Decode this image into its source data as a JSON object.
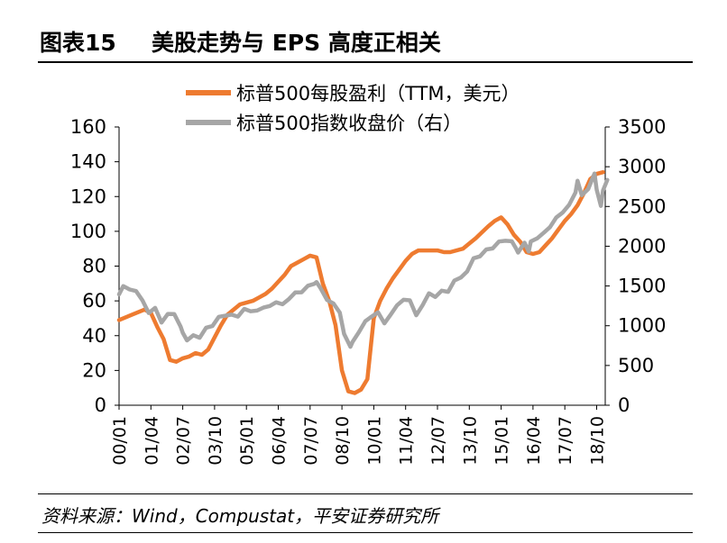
{
  "header": {
    "figure_label": "图表15",
    "title": "美股走势与 EPS 高度正相关"
  },
  "source": "资料来源：Wind，Compustat，平安证券研究所",
  "colors": {
    "eps": "#ee7b30",
    "index": "#a6a6a6",
    "axis": "#000000"
  },
  "chart_data": {
    "type": "line",
    "x_tick_labels": [
      "00/01",
      "01/04",
      "02/07",
      "03/10",
      "05/01",
      "06/04",
      "07/07",
      "08/10",
      "10/01",
      "11/04",
      "12/07",
      "13/10",
      "15/01",
      "16/04",
      "17/07",
      "18/10"
    ],
    "x_range": [
      "2000-01",
      "2019-03"
    ],
    "y_left": {
      "range": [
        0,
        160
      ],
      "ticks": [
        0,
        20,
        40,
        60,
        80,
        100,
        120,
        140,
        160
      ]
    },
    "y_right": {
      "range": [
        0,
        3500
      ],
      "ticks": [
        0,
        500,
        1000,
        1500,
        2000,
        2500,
        3000,
        3500
      ]
    },
    "legend_position": "top-center",
    "series": [
      {
        "name": "标普500每股盈利（TTM，美元）",
        "axis": "left",
        "points": [
          [
            "2000-01",
            49
          ],
          [
            "2000-07",
            52
          ],
          [
            "2001-01",
            55
          ],
          [
            "2001-04",
            53
          ],
          [
            "2001-07",
            45
          ],
          [
            "2001-10",
            38
          ],
          [
            "2002-01",
            26
          ],
          [
            "2002-04",
            25
          ],
          [
            "2002-07",
            27
          ],
          [
            "2002-10",
            28
          ],
          [
            "2003-01",
            30
          ],
          [
            "2003-04",
            29
          ],
          [
            "2003-07",
            32
          ],
          [
            "2003-10",
            39
          ],
          [
            "2004-01",
            46
          ],
          [
            "2004-04",
            52
          ],
          [
            "2004-07",
            55
          ],
          [
            "2004-10",
            58
          ],
          [
            "2005-01",
            59
          ],
          [
            "2005-04",
            60
          ],
          [
            "2005-07",
            62
          ],
          [
            "2005-10",
            64
          ],
          [
            "2006-01",
            67
          ],
          [
            "2006-04",
            71
          ],
          [
            "2006-07",
            75
          ],
          [
            "2006-10",
            80
          ],
          [
            "2007-01",
            82
          ],
          [
            "2007-04",
            84
          ],
          [
            "2007-07",
            86
          ],
          [
            "2007-10",
            85
          ],
          [
            "2008-01",
            70
          ],
          [
            "2008-04",
            60
          ],
          [
            "2008-07",
            46
          ],
          [
            "2008-10",
            20
          ],
          [
            "2009-01",
            8
          ],
          [
            "2009-04",
            7
          ],
          [
            "2009-07",
            9
          ],
          [
            "2009-10",
            15
          ],
          [
            "2010-01",
            50
          ],
          [
            "2010-04",
            60
          ],
          [
            "2010-07",
            67
          ],
          [
            "2010-10",
            73
          ],
          [
            "2011-01",
            78
          ],
          [
            "2011-04",
            83
          ],
          [
            "2011-07",
            87
          ],
          [
            "2011-10",
            89
          ],
          [
            "2012-01",
            89
          ],
          [
            "2012-07",
            89
          ],
          [
            "2012-10",
            88
          ],
          [
            "2013-01",
            88
          ],
          [
            "2013-07",
            90
          ],
          [
            "2013-10",
            93
          ],
          [
            "2014-01",
            96
          ],
          [
            "2014-07",
            103
          ],
          [
            "2014-10",
            106
          ],
          [
            "2015-01",
            108
          ],
          [
            "2015-04",
            104
          ],
          [
            "2015-07",
            98
          ],
          [
            "2015-10",
            94
          ],
          [
            "2016-01",
            88
          ],
          [
            "2016-04",
            87
          ],
          [
            "2016-07",
            88
          ],
          [
            "2016-10",
            92
          ],
          [
            "2017-01",
            96
          ],
          [
            "2017-04",
            101
          ],
          [
            "2017-07",
            106
          ],
          [
            "2017-10",
            110
          ],
          [
            "2018-01",
            115
          ],
          [
            "2018-04",
            122
          ],
          [
            "2018-07",
            130
          ],
          [
            "2018-10",
            133
          ],
          [
            "2019-01",
            134
          ]
        ]
      },
      {
        "name": "标普500指数收盘价（右）",
        "axis": "right",
        "points": [
          [
            "2000-01",
            1394
          ],
          [
            "2000-03",
            1498
          ],
          [
            "2000-06",
            1455
          ],
          [
            "2000-09",
            1436
          ],
          [
            "2000-12",
            1320
          ],
          [
            "2001-03",
            1160
          ],
          [
            "2001-06",
            1224
          ],
          [
            "2001-09",
            1040
          ],
          [
            "2001-12",
            1148
          ],
          [
            "2002-03",
            1147
          ],
          [
            "2002-06",
            990
          ],
          [
            "2002-07",
            912
          ],
          [
            "2002-09",
            815
          ],
          [
            "2002-12",
            880
          ],
          [
            "2003-03",
            848
          ],
          [
            "2003-06",
            975
          ],
          [
            "2003-09",
            996
          ],
          [
            "2003-12",
            1112
          ],
          [
            "2004-03",
            1126
          ],
          [
            "2004-06",
            1140
          ],
          [
            "2004-09",
            1115
          ],
          [
            "2004-12",
            1212
          ],
          [
            "2005-03",
            1181
          ],
          [
            "2005-06",
            1191
          ],
          [
            "2005-09",
            1228
          ],
          [
            "2005-12",
            1248
          ],
          [
            "2006-03",
            1295
          ],
          [
            "2006-06",
            1270
          ],
          [
            "2006-09",
            1336
          ],
          [
            "2006-12",
            1418
          ],
          [
            "2007-03",
            1420
          ],
          [
            "2007-06",
            1503
          ],
          [
            "2007-09",
            1527
          ],
          [
            "2007-10",
            1549
          ],
          [
            "2007-12",
            1468
          ],
          [
            "2008-03",
            1323
          ],
          [
            "2008-06",
            1280
          ],
          [
            "2008-09",
            1166
          ],
          [
            "2008-11",
            896
          ],
          [
            "2009-02",
            735
          ],
          [
            "2009-03",
            797
          ],
          [
            "2009-06",
            919
          ],
          [
            "2009-09",
            1057
          ],
          [
            "2009-12",
            1115
          ],
          [
            "2010-03",
            1169
          ],
          [
            "2010-06",
            1030
          ],
          [
            "2010-09",
            1141
          ],
          [
            "2010-12",
            1258
          ],
          [
            "2011-03",
            1326
          ],
          [
            "2011-06",
            1320
          ],
          [
            "2011-09",
            1131
          ],
          [
            "2011-12",
            1258
          ],
          [
            "2012-03",
            1408
          ],
          [
            "2012-06",
            1362
          ],
          [
            "2012-09",
            1441
          ],
          [
            "2012-12",
            1426
          ],
          [
            "2013-03",
            1569
          ],
          [
            "2013-06",
            1606
          ],
          [
            "2013-09",
            1682
          ],
          [
            "2013-12",
            1848
          ],
          [
            "2014-03",
            1872
          ],
          [
            "2014-06",
            1960
          ],
          [
            "2014-09",
            1972
          ],
          [
            "2014-12",
            2059
          ],
          [
            "2015-03",
            2068
          ],
          [
            "2015-06",
            2063
          ],
          [
            "2015-08",
            1972
          ],
          [
            "2015-09",
            1920
          ],
          [
            "2015-12",
            2044
          ],
          [
            "2016-02",
            1932
          ],
          [
            "2016-03",
            2060
          ],
          [
            "2016-06",
            2099
          ],
          [
            "2016-09",
            2168
          ],
          [
            "2016-12",
            2239
          ],
          [
            "2017-03",
            2363
          ],
          [
            "2017-06",
            2423
          ],
          [
            "2017-09",
            2519
          ],
          [
            "2017-12",
            2674
          ],
          [
            "2018-01",
            2824
          ],
          [
            "2018-03",
            2641
          ],
          [
            "2018-06",
            2718
          ],
          [
            "2018-09",
            2914
          ],
          [
            "2018-10",
            2712
          ],
          [
            "2018-12",
            2507
          ],
          [
            "2019-01",
            2704
          ],
          [
            "2019-03",
            2834
          ]
        ]
      }
    ]
  }
}
